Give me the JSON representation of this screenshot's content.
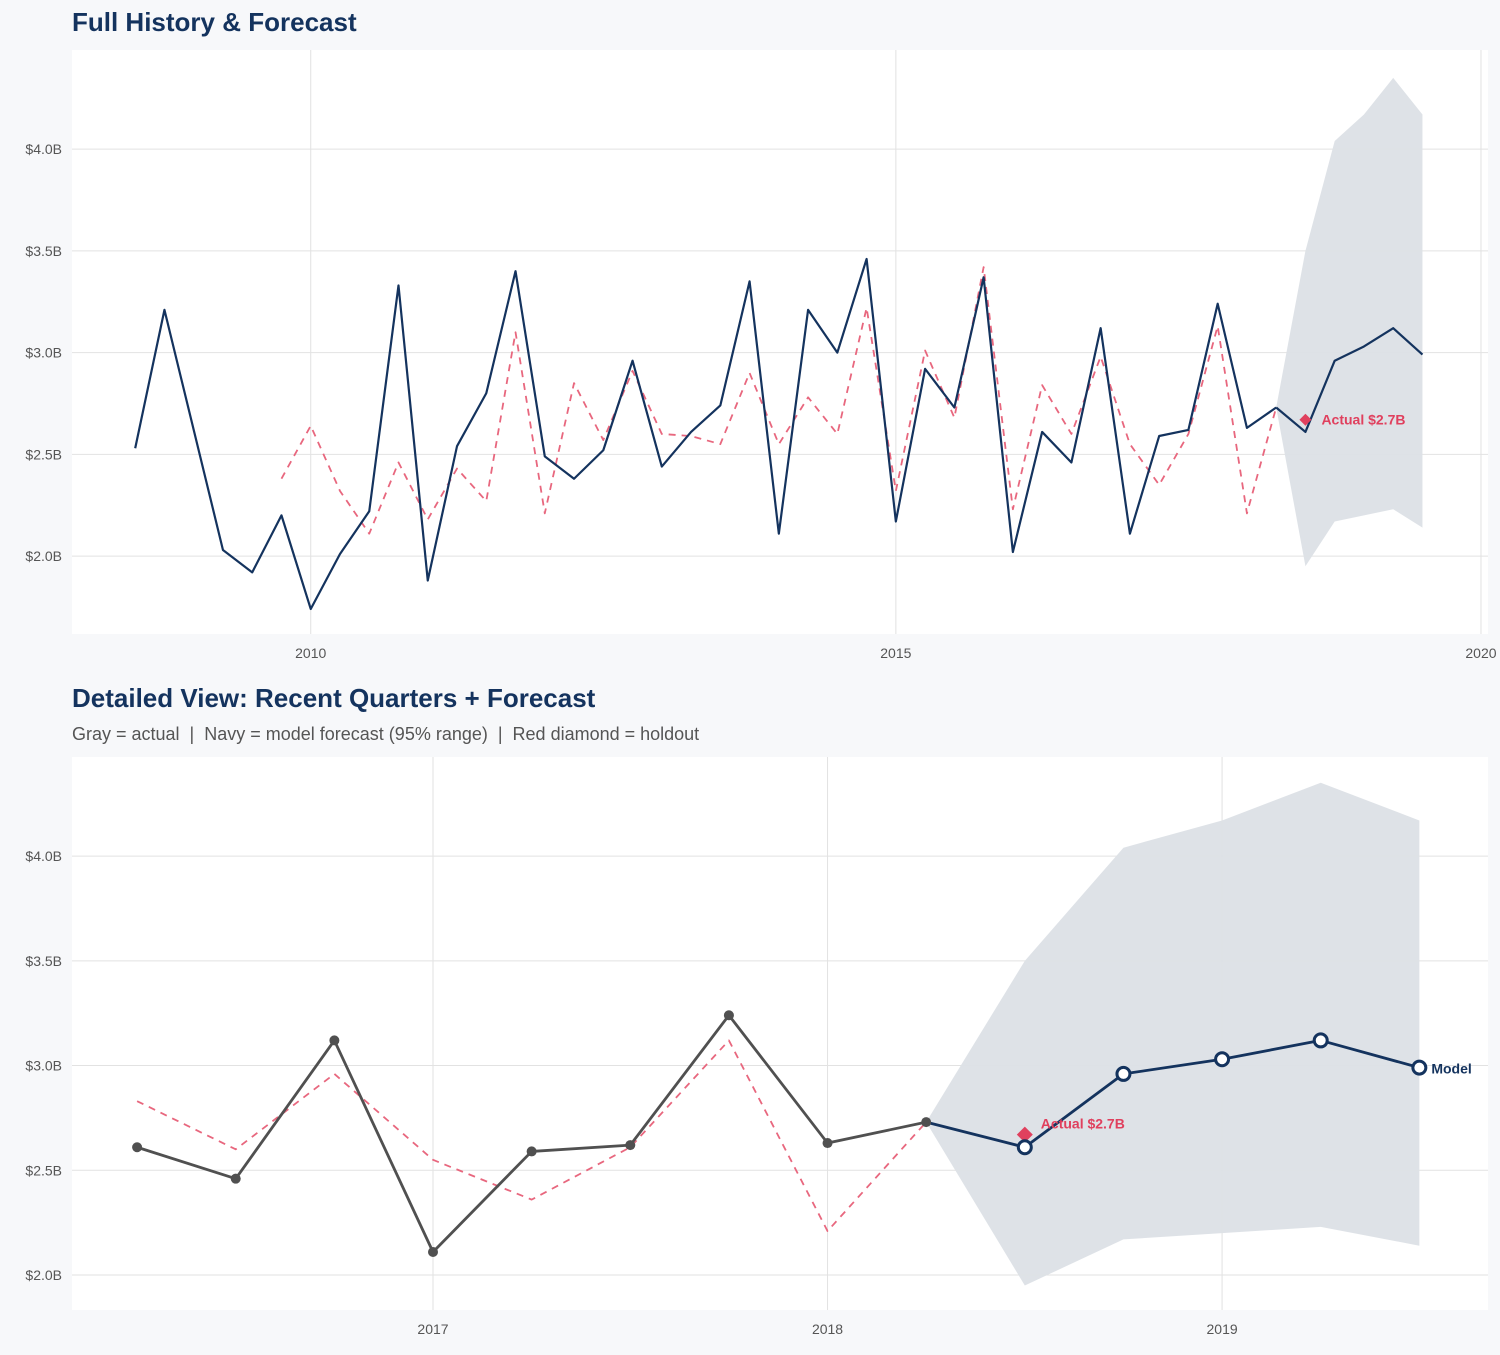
{
  "chart_data": [
    {
      "type": "line",
      "title": "Full History & Forecast",
      "xlim": [
        2007.96,
        2020.06
      ],
      "ylim": [
        1.617,
        4.487
      ],
      "x_ticks": [
        2010,
        2015,
        2020
      ],
      "x_tick_labels": [
        "2010",
        "2015",
        "2020"
      ],
      "y_ticks": [
        2.0,
        2.5,
        3.0,
        3.5,
        4.0
      ],
      "y_tick_labels": [
        "$2.0B",
        "$2.5B",
        "$3.0B",
        "$3.5B",
        "$4.0B"
      ],
      "grid": true,
      "series": [
        {
          "role": "actual",
          "color": "#14335e",
          "style": "solid",
          "x": [
            2008.5,
            2008.75,
            2009,
            2009.25,
            2009.5,
            2009.75,
            2010,
            2010.25,
            2010.5,
            2010.75,
            2011,
            2011.25,
            2011.5,
            2011.75,
            2012,
            2012.25,
            2012.5,
            2012.75,
            2013,
            2013.25,
            2013.5,
            2013.75,
            2014,
            2014.25,
            2014.5,
            2014.75,
            2015,
            2015.25,
            2015.5,
            2015.75,
            2016,
            2016.25,
            2016.5,
            2016.75,
            2017,
            2017.25,
            2017.5,
            2017.75,
            2018,
            2018.25
          ],
          "y": [
            2.53,
            3.21,
            2.62,
            2.03,
            1.92,
            2.2,
            1.74,
            2.01,
            2.22,
            3.33,
            1.88,
            2.54,
            2.8,
            3.4,
            2.49,
            2.38,
            2.52,
            2.96,
            2.44,
            2.61,
            2.74,
            3.35,
            2.11,
            3.21,
            3.0,
            3.46,
            2.17,
            2.92,
            2.73,
            3.37,
            2.02,
            2.61,
            2.46,
            3.12,
            2.11,
            2.59,
            2.62,
            3.24,
            2.63,
            2.73
          ]
        },
        {
          "role": "fitted",
          "color": "#e8677e",
          "style": "dashed",
          "x": [
            2009.75,
            2010,
            2010.25,
            2010.5,
            2010.75,
            2011,
            2011.25,
            2011.5,
            2011.75,
            2012,
            2012.25,
            2012.5,
            2012.75,
            2013,
            2013.25,
            2013.5,
            2013.75,
            2014,
            2014.25,
            2014.5,
            2014.75,
            2015,
            2015.25,
            2015.5,
            2015.75,
            2016,
            2016.25,
            2016.5,
            2016.75,
            2017,
            2017.25,
            2017.5,
            2017.75,
            2018,
            2018.25
          ],
          "y": [
            2.38,
            2.64,
            2.32,
            2.11,
            2.46,
            2.18,
            2.43,
            2.27,
            3.1,
            2.21,
            2.85,
            2.57,
            2.91,
            2.6,
            2.59,
            2.55,
            2.9,
            2.55,
            2.78,
            2.6,
            3.22,
            2.32,
            3.01,
            2.68,
            3.42,
            2.23,
            2.84,
            2.6,
            2.98,
            2.55,
            2.35,
            2.6,
            3.13,
            2.21,
            2.73
          ]
        },
        {
          "role": "forecast",
          "color": "#14335e",
          "style": "solid",
          "x": [
            2018.25,
            2018.5,
            2018.75,
            2019,
            2019.25,
            2019.5
          ],
          "y": [
            2.73,
            2.61,
            2.96,
            3.03,
            3.12,
            2.99
          ]
        }
      ],
      "band": {
        "color": "#dce0e6",
        "x": [
          2018.25,
          2018.5,
          2018.75,
          2019,
          2019.25,
          2019.5
        ],
        "lower": [
          2.73,
          1.95,
          2.17,
          2.2,
          2.23,
          2.14
        ],
        "upper": [
          2.73,
          3.5,
          4.04,
          4.17,
          4.35,
          4.17
        ]
      },
      "holdout": {
        "x": 2018.5,
        "y": 2.67,
        "color": "#e0405e",
        "label": "Actual $2.7B"
      }
    },
    {
      "type": "line",
      "title": "Detailed View: Recent Quarters + Forecast",
      "subtitle": "Gray = actual  |  Navy = model forecast (95% range)  |  Red diamond = holdout",
      "xlim": [
        2016.085,
        2019.674
      ],
      "ylim": [
        1.833,
        4.473
      ],
      "x_ticks": [
        2017,
        2018,
        2019
      ],
      "x_tick_labels": [
        "2017",
        "2018",
        "2019"
      ],
      "y_ticks": [
        2.0,
        2.5,
        3.0,
        3.5,
        4.0
      ],
      "y_tick_labels": [
        "$2.0B",
        "$2.5B",
        "$3.0B",
        "$3.5B",
        "$4.0B"
      ],
      "grid": true,
      "series": [
        {
          "role": "actual",
          "color": "#505050",
          "style": "solid",
          "markers": "filled",
          "x": [
            2016.25,
            2016.5,
            2016.75,
            2017,
            2017.25,
            2017.5,
            2017.75,
            2018,
            2018.25
          ],
          "y": [
            2.61,
            2.46,
            3.12,
            2.11,
            2.59,
            2.62,
            3.24,
            2.63,
            2.73
          ]
        },
        {
          "role": "fitted",
          "color": "#e8677e",
          "style": "dashed",
          "x": [
            2016.25,
            2016.5,
            2016.75,
            2017,
            2017.25,
            2017.5,
            2017.75,
            2018,
            2018.25
          ],
          "y": [
            2.83,
            2.6,
            2.96,
            2.55,
            2.36,
            2.61,
            3.12,
            2.21,
            2.73
          ]
        },
        {
          "role": "forecast",
          "color": "#14335e",
          "style": "solid",
          "markers": "hollow",
          "end_label": "Model",
          "x": [
            2018.25,
            2018.5,
            2018.75,
            2019,
            2019.25,
            2019.5
          ],
          "y": [
            2.73,
            2.61,
            2.96,
            3.03,
            3.12,
            2.99
          ]
        }
      ],
      "band": {
        "color": "#dce0e6",
        "x": [
          2018.25,
          2018.5,
          2018.75,
          2019,
          2019.25,
          2019.5
        ],
        "lower": [
          2.73,
          1.95,
          2.17,
          2.2,
          2.23,
          2.14
        ],
        "upper": [
          2.73,
          3.5,
          4.04,
          4.17,
          4.35,
          4.17
        ]
      },
      "holdout": {
        "x": 2018.5,
        "y": 2.67,
        "color": "#e0405e",
        "label": "Actual $2.7B"
      }
    }
  ]
}
